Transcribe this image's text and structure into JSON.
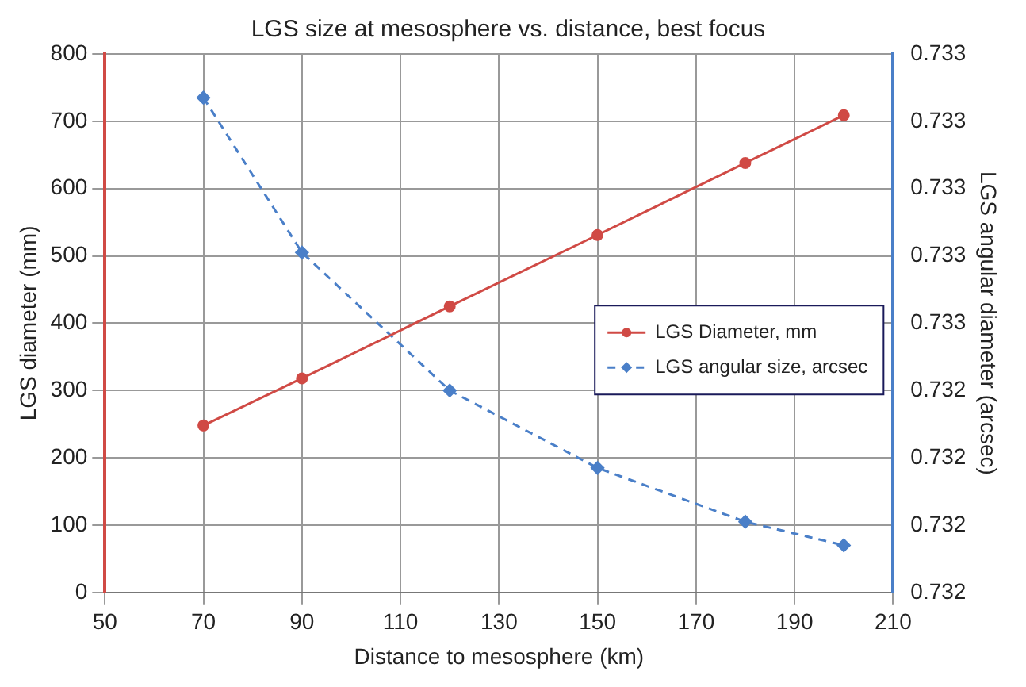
{
  "chart_data": {
    "type": "line",
    "title": "LGS size at mesosphere vs. distance, best focus",
    "xlabel": "Distance to mesosphere (km)",
    "ylabel": "LGS diameter (mm)",
    "y2label": "LGS angular diameter (arcsec)",
    "xlim": [
      50,
      210
    ],
    "xticks": [
      50,
      70,
      90,
      110,
      130,
      150,
      170,
      190,
      210
    ],
    "ylim": [
      0,
      800
    ],
    "yticks": [
      0,
      100,
      200,
      300,
      400,
      500,
      600,
      700,
      800
    ],
    "y2lim": [
      0.7318,
      0.7334
    ],
    "y2ticks": [
      {
        "value": 0.7318,
        "label": "0.732"
      },
      {
        "value": 0.732,
        "label": "0.732"
      },
      {
        "value": 0.7322,
        "label": "0.732"
      },
      {
        "value": 0.7324,
        "label": "0.732"
      },
      {
        "value": 0.7326,
        "label": "0.733"
      },
      {
        "value": 0.7328,
        "label": "0.733"
      },
      {
        "value": 0.733,
        "label": "0.733"
      },
      {
        "value": 0.7332,
        "label": "0.733"
      },
      {
        "value": 0.7334,
        "label": "0.733"
      }
    ],
    "x": [
      70,
      90,
      120,
      150,
      180,
      200
    ],
    "series": [
      {
        "name": "LGS Diameter, mm",
        "color": "#d04a45",
        "values": [
          248,
          318,
          425,
          531,
          638,
          709
        ],
        "marker": "circle",
        "line_style": "solid"
      },
      {
        "name": "LGS angular size, arcsec",
        "color": "#4a7fc8",
        "values": [
          0.73327,
          0.73281,
          0.7324,
          0.73217,
          0.73201,
          0.73194
        ],
        "axis": "y2",
        "marker": "diamond",
        "line_style": "dashed"
      }
    ],
    "grid": true,
    "legend": "right"
  }
}
